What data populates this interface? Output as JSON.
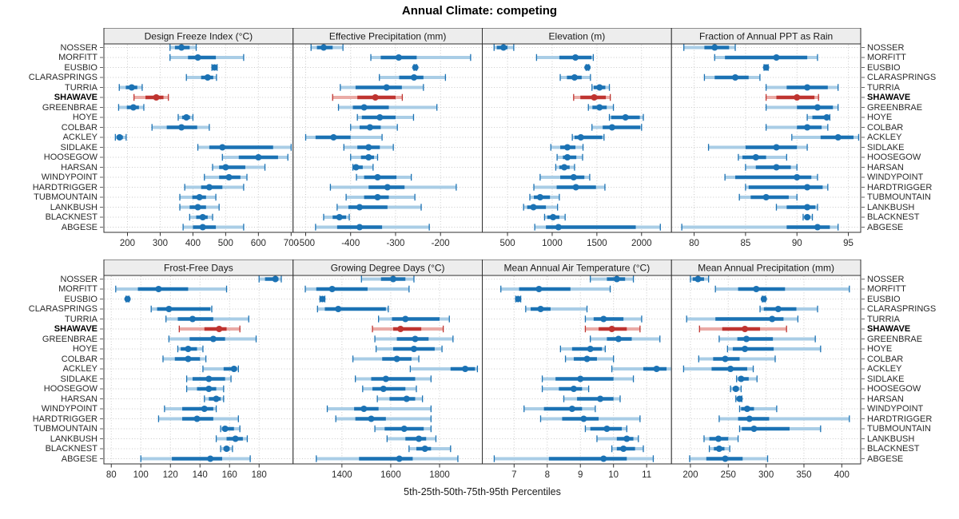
{
  "title": "Annual Climate: competing",
  "caption": "5th-25th-50th-75th-95th Percentiles",
  "colors": {
    "series_blue": "#1b72b4",
    "series_blue_light": "#a9cde6",
    "highlight_red": "#bf3430",
    "highlight_red_light": "#eaaba6",
    "grid": "#c9c9c9",
    "panel_border": "#2f2f2f",
    "strip_bg": "#ededed",
    "outer_tick": "#666666"
  },
  "chart_data": {
    "type": "dotplot-percentiles",
    "layout": "2 rows x 4 columns trellis, shared station rows",
    "percentile_labels": [
      "5th",
      "25th",
      "50th",
      "75th",
      "95th"
    ],
    "legend_position": "none",
    "grid": "dotted",
    "highlight": "SHAWAVE",
    "stations": [
      "NOSSER",
      "MORFITT",
      "EUSBIO",
      "CLARASPRINGS",
      "TURRIA",
      "SHAWAVE",
      "GREENBRAE",
      "HOYE",
      "COLBAR",
      "ACKLEY",
      "SIDLAKE",
      "HOOSEGOW",
      "HARSAN",
      "WINDYPOINT",
      "HARDTRIGGER",
      "TUBMOUNTAIN",
      "LANKBUSH",
      "BLACKNEST",
      "ABGESE"
    ],
    "panels": [
      {
        "title": "Design Freeze Index (°C)",
        "xlim": [
          128,
          706
        ],
        "ticks": [
          200,
          300,
          400,
          500,
          600,
          700
        ],
        "values": [
          [
            330,
            345,
            365,
            390,
            410
          ],
          [
            330,
            385,
            415,
            470,
            555
          ],
          [
            458,
            462,
            466,
            470,
            474
          ],
          [
            380,
            425,
            445,
            462,
            472
          ],
          [
            175,
            195,
            213,
            230,
            245
          ],
          [
            220,
            255,
            288,
            310,
            325
          ],
          [
            173,
            198,
            218,
            235,
            250
          ],
          [
            355,
            367,
            380,
            391,
            400
          ],
          [
            275,
            320,
            365,
            413,
            450
          ],
          [
            163,
            169,
            176,
            186,
            196
          ],
          [
            415,
            450,
            490,
            645,
            700
          ],
          [
            490,
            540,
            600,
            660,
            690
          ],
          [
            460,
            480,
            500,
            560,
            620
          ],
          [
            435,
            480,
            510,
            545,
            565
          ],
          [
            375,
            425,
            450,
            490,
            555
          ],
          [
            360,
            398,
            420,
            440,
            470
          ],
          [
            360,
            390,
            415,
            440,
            480
          ],
          [
            390,
            410,
            430,
            445,
            460
          ],
          [
            370,
            400,
            430,
            470,
            555
          ]
        ]
      },
      {
        "title": "Effective Precipitation (mm)",
        "xlim": [
          -528,
          -107
        ],
        "ticks": [
          -500,
          -400,
          -300,
          -200
        ],
        "values": [
          [
            -488,
            -475,
            -460,
            -440,
            -417
          ],
          [
            -355,
            -333,
            -293,
            -253,
            -133
          ],
          [
            -259,
            -257,
            -256,
            -255,
            -253
          ],
          [
            -336,
            -292,
            -259,
            -238,
            -189
          ],
          [
            -423,
            -389,
            -320,
            -286,
            -238
          ],
          [
            -440,
            -385,
            -345,
            -300,
            -285
          ],
          [
            -427,
            -395,
            -370,
            -315,
            -208
          ],
          [
            -385,
            -375,
            -335,
            -300,
            -260
          ],
          [
            -400,
            -380,
            -357,
            -333,
            -296
          ],
          [
            -500,
            -478,
            -438,
            -400,
            -330
          ],
          [
            -415,
            -385,
            -360,
            -335,
            -305
          ],
          [
            -400,
            -377,
            -360,
            -348,
            -340
          ],
          [
            -395,
            -392,
            -388,
            -373,
            -350
          ],
          [
            -387,
            -370,
            -340,
            -298,
            -265
          ],
          [
            -445,
            -360,
            -318,
            -280,
            -165
          ],
          [
            -410,
            -370,
            -340,
            -315,
            -257
          ],
          [
            -430,
            -405,
            -380,
            -318,
            -243
          ],
          [
            -460,
            -440,
            -425,
            -410,
            -403
          ],
          [
            -478,
            -430,
            -380,
            -330,
            -225
          ]
        ]
      },
      {
        "title": "Elevation (m)",
        "xlim": [
          218,
          2335
        ],
        "ticks": [
          500,
          1000,
          1500,
          2000
        ],
        "values": [
          [
            350,
            380,
            455,
            500,
            570
          ],
          [
            825,
            1080,
            1260,
            1440,
            1460
          ],
          [
            1380,
            1390,
            1395,
            1400,
            1410
          ],
          [
            1090,
            1165,
            1250,
            1330,
            1428
          ],
          [
            1445,
            1465,
            1530,
            1595,
            1640
          ],
          [
            1240,
            1315,
            1470,
            1600,
            1650
          ],
          [
            1405,
            1450,
            1530,
            1610,
            1685
          ],
          [
            1640,
            1660,
            1820,
            1980,
            2020
          ],
          [
            1445,
            1565,
            1670,
            1985,
            2000
          ],
          [
            1225,
            1250,
            1320,
            1560,
            1580
          ],
          [
            985,
            1090,
            1170,
            1260,
            1345
          ],
          [
            1055,
            1120,
            1170,
            1270,
            1340
          ],
          [
            1040,
            1080,
            1135,
            1195,
            1250
          ],
          [
            865,
            1090,
            1240,
            1360,
            1420
          ],
          [
            795,
            1050,
            1265,
            1490,
            1590
          ],
          [
            750,
            795,
            865,
            975,
            1080
          ],
          [
            680,
            720,
            790,
            930,
            1060
          ],
          [
            915,
            945,
            1010,
            1080,
            1145
          ],
          [
            805,
            930,
            1070,
            1935,
            2210
          ]
        ]
      },
      {
        "title": "Fraction of Annual PPT as Rain",
        "xlim": [
          77.8,
          96.2
        ],
        "ticks": [
          80,
          85,
          90,
          95
        ],
        "values": [
          [
            79,
            81,
            82,
            83.4,
            84
          ],
          [
            82,
            83,
            88,
            91,
            92
          ],
          [
            86.8,
            86.9,
            87,
            87.1,
            87.2
          ],
          [
            81,
            82,
            84,
            85.3,
            86.4
          ],
          [
            87,
            89,
            91,
            93,
            94
          ],
          [
            87,
            88,
            90,
            91.7,
            92.1
          ],
          [
            87,
            90,
            92,
            93.5,
            94
          ],
          [
            91,
            91.5,
            92.9,
            93,
            93.2
          ],
          [
            87,
            90,
            91,
            92.4,
            93
          ],
          [
            89.5,
            92.3,
            94,
            95.5,
            96
          ],
          [
            81.4,
            85,
            88,
            90,
            91
          ],
          [
            84.3,
            84.7,
            86,
            87,
            89
          ],
          [
            85,
            86,
            88,
            89.4,
            90
          ],
          [
            83,
            84,
            90,
            91.4,
            92
          ],
          [
            85,
            85.3,
            91,
            92.5,
            93
          ],
          [
            84.4,
            85.5,
            87,
            89.2,
            90
          ],
          [
            88,
            89,
            91,
            91.8,
            92
          ],
          [
            90.6,
            90.8,
            91,
            91.2,
            91.5
          ],
          [
            78.8,
            89,
            92,
            93.2,
            94
          ]
        ]
      },
      {
        "title": "Frost-Free Days",
        "xlim": [
          75,
          203
        ],
        "ticks": [
          80,
          100,
          120,
          140,
          160,
          180
        ],
        "values": [
          [
            180,
            184,
            191,
            193,
            195
          ],
          [
            83,
            98,
            112,
            132,
            158
          ],
          [
            90,
            90.5,
            91,
            91.5,
            92
          ],
          [
            107,
            111,
            119,
            147,
            148
          ],
          [
            117,
            125,
            135,
            149,
            173
          ],
          [
            126,
            143,
            153,
            158,
            167
          ],
          [
            119,
            133,
            149,
            157,
            178
          ],
          [
            125,
            127,
            132,
            138,
            142
          ],
          [
            115,
            123,
            132,
            140,
            144
          ],
          [
            142,
            156,
            163,
            165,
            166
          ],
          [
            131,
            135,
            146,
            157,
            161
          ],
          [
            131,
            138,
            146,
            151,
            156
          ],
          [
            143,
            146,
            151,
            154,
            156
          ],
          [
            116,
            128,
            143,
            149,
            151
          ],
          [
            112,
            128,
            138,
            149,
            166
          ],
          [
            154,
            155,
            157,
            163,
            167
          ],
          [
            151,
            158,
            164,
            169,
            172
          ],
          [
            154,
            156,
            158,
            160,
            162
          ],
          [
            100,
            121,
            147,
            155,
            174
          ]
        ]
      },
      {
        "title": "Growing Degree Days (°C)",
        "xlim": [
          1200,
          1975
        ],
        "ticks": [
          1400,
          1600,
          1800
        ],
        "values": [
          [
            1480,
            1560,
            1610,
            1660,
            1695
          ],
          [
            1250,
            1295,
            1360,
            1505,
            1675
          ],
          [
            1310,
            1315,
            1320,
            1325,
            1330
          ],
          [
            1300,
            1330,
            1385,
            1580,
            1590
          ],
          [
            1550,
            1605,
            1660,
            1800,
            1840
          ],
          [
            1525,
            1610,
            1640,
            1725,
            1815
          ],
          [
            1535,
            1625,
            1700,
            1755,
            1855
          ],
          [
            1540,
            1610,
            1695,
            1780,
            1810
          ],
          [
            1445,
            1565,
            1625,
            1685,
            1715
          ],
          [
            1680,
            1845,
            1905,
            1945,
            1955
          ],
          [
            1455,
            1520,
            1580,
            1700,
            1765
          ],
          [
            1485,
            1525,
            1570,
            1660,
            1705
          ],
          [
            1545,
            1595,
            1665,
            1700,
            1730
          ],
          [
            1340,
            1450,
            1490,
            1550,
            1765
          ],
          [
            1375,
            1455,
            1520,
            1580,
            1765
          ],
          [
            1535,
            1575,
            1655,
            1735,
            1765
          ],
          [
            1585,
            1660,
            1715,
            1745,
            1785
          ],
          [
            1675,
            1705,
            1740,
            1765,
            1845
          ],
          [
            1295,
            1470,
            1635,
            1690,
            1875
          ]
        ]
      },
      {
        "title": "Mean Annual Air Temperature (°C)",
        "xlim": [
          6.04,
          11.75
        ],
        "ticks": [
          7,
          8,
          9,
          10,
          11
        ],
        "values": [
          [
            9.3,
            9.8,
            10.1,
            10.35,
            10.6
          ],
          [
            6.6,
            7.15,
            7.75,
            8.7,
            9.9
          ],
          [
            7.05,
            7.1,
            7.12,
            7.15,
            7.2
          ],
          [
            7.35,
            7.5,
            7.8,
            8.1,
            9.2
          ],
          [
            9.15,
            9.4,
            9.7,
            10.3,
            10.85
          ],
          [
            9.15,
            9.55,
            9.95,
            10.4,
            10.8
          ],
          [
            9.3,
            9.8,
            10.15,
            10.55,
            11.4
          ],
          [
            8.4,
            8.75,
            9.3,
            9.65,
            9.75
          ],
          [
            8.55,
            8.8,
            9.2,
            9.5,
            10.0
          ],
          [
            9.95,
            10.9,
            11.3,
            11.6,
            11.75
          ],
          [
            7.85,
            8.25,
            9.0,
            10.0,
            10.6
          ],
          [
            7.85,
            8.35,
            8.8,
            9.05,
            9.25
          ],
          [
            8.5,
            8.9,
            9.6,
            10.0,
            10.2
          ],
          [
            7.3,
            7.9,
            8.75,
            9.05,
            9.45
          ],
          [
            7.8,
            8.45,
            9.1,
            9.55,
            10.8
          ],
          [
            9.15,
            9.3,
            9.8,
            10.25,
            10.4
          ],
          [
            9.5,
            10.1,
            10.4,
            10.6,
            10.75
          ],
          [
            9.95,
            10.1,
            10.3,
            10.65,
            10.9
          ],
          [
            6.4,
            8.05,
            9.7,
            10.4,
            11.2
          ]
        ]
      },
      {
        "title": "Mean Annual Precipitation (mm)",
        "xlim": [
          175,
          425
        ],
        "ticks": [
          200,
          250,
          300,
          350,
          400
        ],
        "values": [
          [
            200,
            203,
            210,
            218,
            224
          ],
          [
            233,
            263,
            287,
            325,
            410
          ],
          [
            295,
            296,
            297,
            298,
            299
          ],
          [
            292,
            297,
            316,
            340,
            368
          ],
          [
            195,
            233,
            308,
            323,
            342
          ],
          [
            212,
            242,
            272,
            292,
            327
          ],
          [
            238,
            262,
            274,
            309,
            365
          ],
          [
            249,
            256,
            272,
            310,
            372
          ],
          [
            211,
            230,
            246,
            265,
            312
          ],
          [
            191,
            228,
            253,
            275,
            283
          ],
          [
            261,
            263,
            267,
            277,
            288
          ],
          [
            253,
            256,
            260,
            264,
            267
          ],
          [
            260,
            262,
            265,
            267,
            268
          ],
          [
            265,
            267,
            275,
            284,
            314
          ],
          [
            238,
            263,
            278,
            304,
            410
          ],
          [
            265,
            268,
            284,
            331,
            372
          ],
          [
            218,
            225,
            237,
            250,
            263
          ],
          [
            225,
            231,
            238,
            245,
            252
          ],
          [
            199,
            221,
            246,
            269,
            302
          ]
        ]
      }
    ]
  }
}
